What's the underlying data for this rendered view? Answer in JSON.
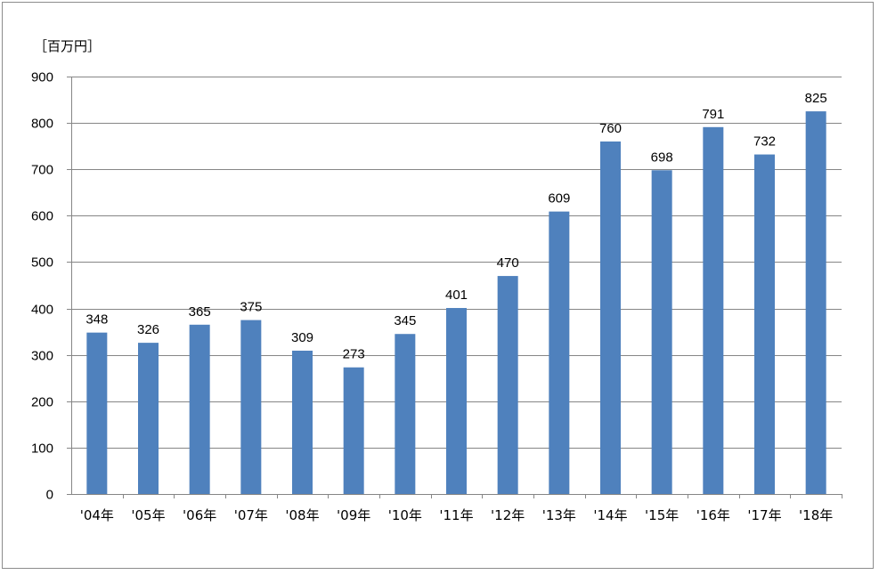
{
  "chart_data": {
    "type": "bar",
    "unit_label": "［百万円］",
    "categories": [
      "'04年",
      "'05年",
      "'06年",
      "'07年",
      "'08年",
      "'09年",
      "'10年",
      "'11年",
      "'12年",
      "'13年",
      "'14年",
      "'15年",
      "'16年",
      "'17年",
      "'18年"
    ],
    "values": [
      348,
      326,
      365,
      375,
      309,
      273,
      345,
      401,
      470,
      609,
      760,
      698,
      791,
      732,
      825
    ],
    "y_ticks": [
      0,
      100,
      200,
      300,
      400,
      500,
      600,
      700,
      800,
      900
    ],
    "ylim": [
      0,
      900
    ],
    "grid": true,
    "data_labels": true,
    "bar_color": "#4f81bd",
    "gridline_color": "#868686"
  }
}
